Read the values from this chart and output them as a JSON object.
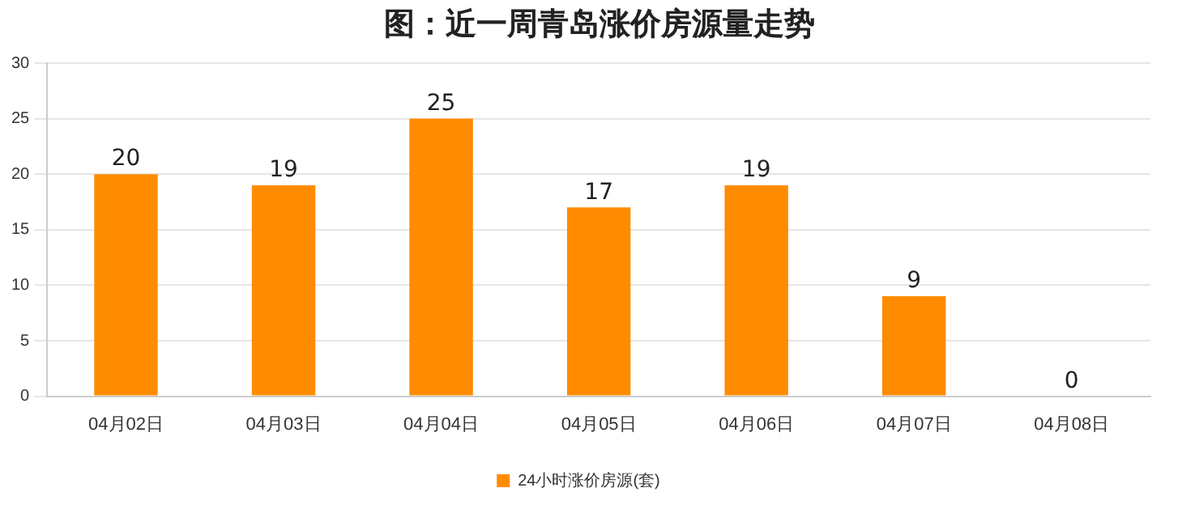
{
  "chart_data": {
    "type": "bar",
    "title": "图：近一周青岛涨价房源量走势",
    "categories": [
      "04月02日",
      "04月03日",
      "04月04日",
      "04月05日",
      "04月06日",
      "04月07日",
      "04月08日"
    ],
    "series": [
      {
        "name": "24小时涨价房源(套)",
        "color": "#ff8c00",
        "values": [
          20,
          19,
          25,
          17,
          19,
          9,
          0
        ]
      }
    ],
    "ylim": [
      0,
      30
    ],
    "yticks": [
      0,
      5,
      10,
      15,
      20,
      25,
      30
    ],
    "grid": "y",
    "legend": "bottom",
    "data_labels": true
  }
}
